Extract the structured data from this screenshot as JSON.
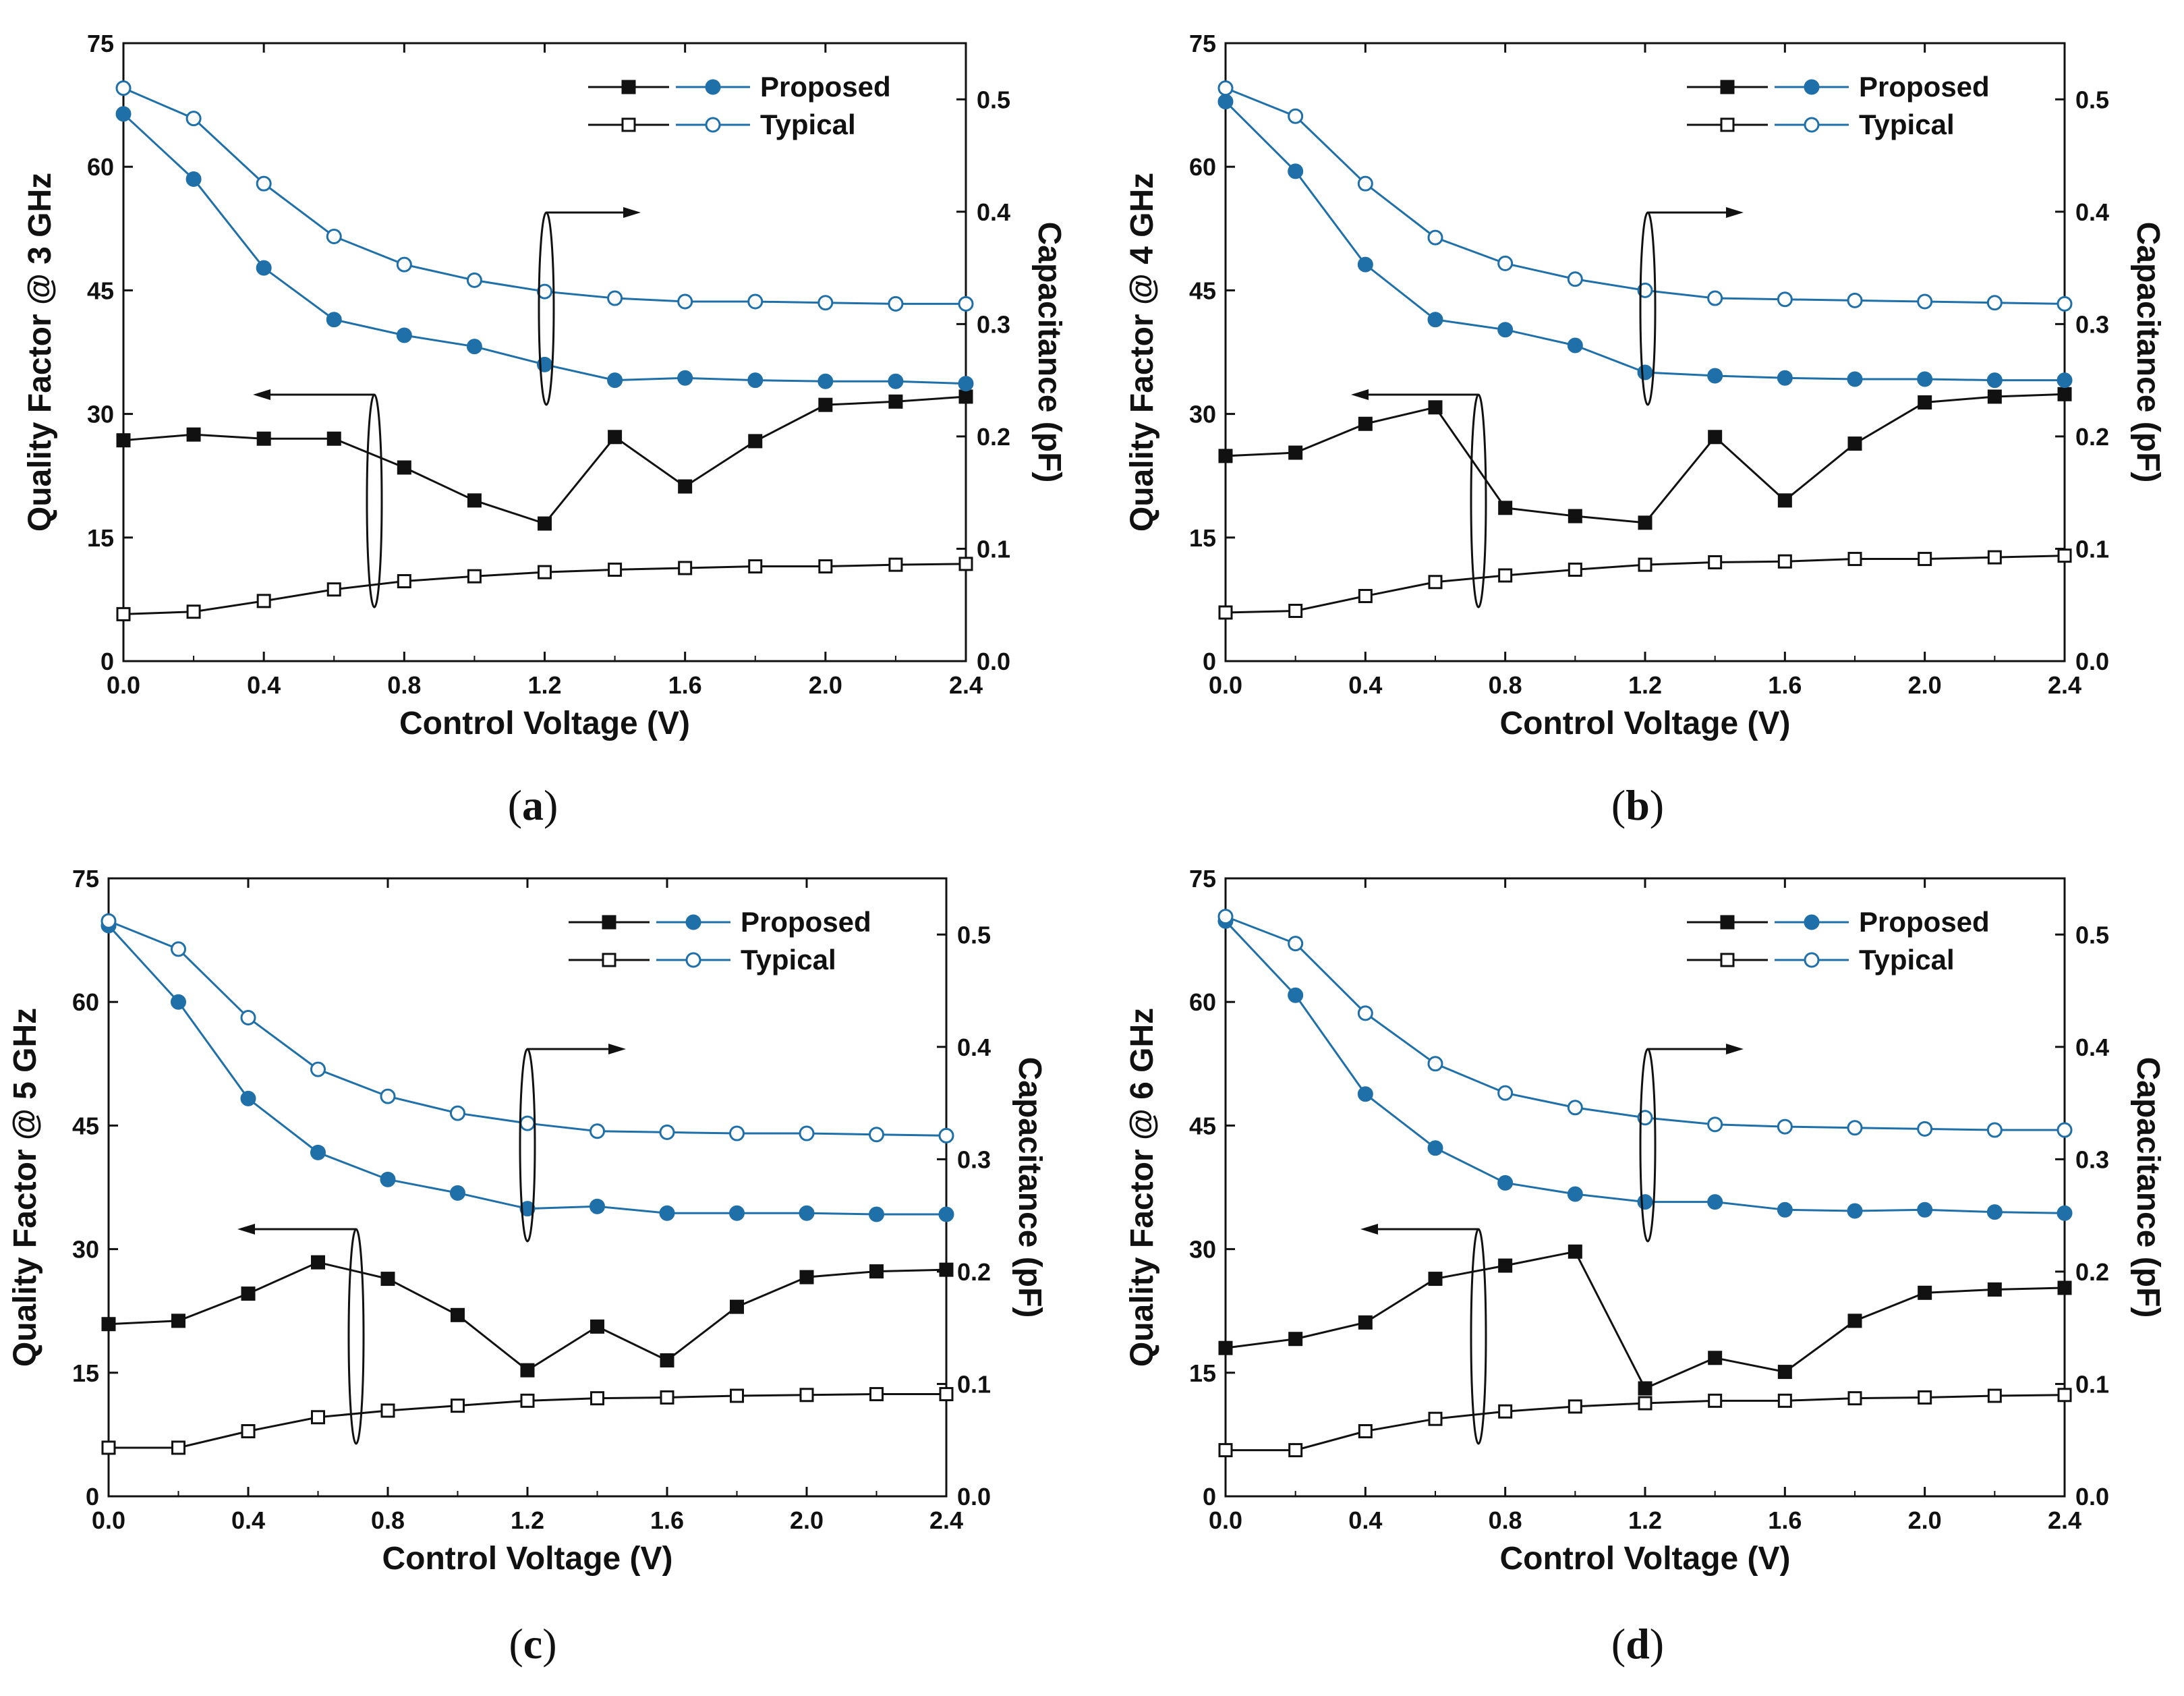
{
  "figure": {
    "x_label": "Control Voltage (V)",
    "y2_label": "Capacitance (pF)",
    "x_ticks": [
      "0.0",
      "0.4",
      "0.8",
      "1.2",
      "1.6",
      "2.0",
      "2.4"
    ],
    "y1_ticks": [
      "0",
      "15",
      "30",
      "45",
      "60",
      "75"
    ],
    "y2_ticks": [
      "0.0",
      "0.1",
      "0.2",
      "0.3",
      "0.4",
      "0.5"
    ],
    "legend": {
      "proposed": "Proposed",
      "typical": "Typical"
    },
    "colors": {
      "q_series": "#111111",
      "cap_series": "#1f6fa8"
    }
  },
  "chart_data": [
    {
      "type": "line",
      "panel": "a",
      "label_open": "(",
      "label_letter": "a",
      "label_close": ")",
      "ylabel": "Quality Factor @ 3 GHz",
      "xlabel": "Control Voltage (V)",
      "y2label": "Capacitance (pF)",
      "xlim": [
        0,
        2.4
      ],
      "ylim": [
        0,
        75
      ],
      "y2lim": [
        0,
        0.55
      ],
      "x": [
        0.0,
        0.2,
        0.4,
        0.6,
        0.8,
        1.0,
        1.2,
        1.4,
        1.6,
        1.8,
        2.0,
        2.2,
        2.4
      ],
      "series": [
        {
          "name": "Proposed",
          "axis": "left",
          "quantity": "Q",
          "values": [
            26.8,
            27.5,
            27.0,
            27.0,
            23.5,
            19.5,
            16.7,
            27.2,
            21.2,
            26.7,
            31.1,
            31.5,
            32.1
          ]
        },
        {
          "name": "Typical",
          "axis": "left",
          "quantity": "Q",
          "values": [
            5.7,
            6.0,
            7.3,
            8.7,
            9.7,
            10.3,
            10.8,
            11.1,
            11.3,
            11.5,
            11.5,
            11.7,
            11.8
          ]
        },
        {
          "name": "Proposed",
          "axis": "right",
          "quantity": "C",
          "values": [
            0.487,
            0.429,
            0.35,
            0.304,
            0.29,
            0.28,
            0.264,
            0.25,
            0.252,
            0.25,
            0.249,
            0.249,
            0.247
          ]
        },
        {
          "name": "Typical",
          "axis": "right",
          "quantity": "C",
          "values": [
            0.51,
            0.483,
            0.425,
            0.378,
            0.353,
            0.339,
            0.329,
            0.323,
            0.32,
            0.32,
            0.319,
            0.318,
            0.318
          ]
        }
      ],
      "annotations": [
        {
          "target": "capacitance curves",
          "axis": "right",
          "arrow": "right"
        },
        {
          "target": "quality factor curves",
          "axis": "left",
          "arrow": "left"
        }
      ]
    },
    {
      "type": "line",
      "panel": "b",
      "label_open": "(",
      "label_letter": "b",
      "label_close": ")",
      "ylabel": "Quality Factor @ 4 GHz",
      "xlabel": "Control Voltage (V)",
      "y2label": "Capacitance (pF)",
      "xlim": [
        0,
        2.4
      ],
      "ylim": [
        0,
        75
      ],
      "y2lim": [
        0,
        0.55
      ],
      "x": [
        0.0,
        0.2,
        0.4,
        0.6,
        0.8,
        1.0,
        1.2,
        1.4,
        1.6,
        1.8,
        2.0,
        2.2,
        2.4
      ],
      "series": [
        {
          "name": "Proposed",
          "axis": "left",
          "quantity": "Q",
          "values": [
            24.9,
            25.3,
            28.8,
            30.8,
            18.6,
            17.6,
            16.8,
            27.2,
            19.5,
            26.4,
            31.4,
            32.1,
            32.4
          ]
        },
        {
          "name": "Typical",
          "axis": "left",
          "quantity": "Q",
          "values": [
            5.9,
            6.1,
            7.9,
            9.6,
            10.4,
            11.1,
            11.7,
            12.0,
            12.1,
            12.4,
            12.4,
            12.6,
            12.8
          ]
        },
        {
          "name": "Proposed",
          "axis": "right",
          "quantity": "C",
          "values": [
            0.498,
            0.436,
            0.353,
            0.304,
            0.295,
            0.281,
            0.257,
            0.254,
            0.252,
            0.251,
            0.251,
            0.25,
            0.25
          ]
        },
        {
          "name": "Typical",
          "axis": "right",
          "quantity": "C",
          "values": [
            0.51,
            0.485,
            0.425,
            0.377,
            0.354,
            0.34,
            0.33,
            0.323,
            0.322,
            0.321,
            0.32,
            0.319,
            0.318
          ]
        }
      ],
      "annotations": [
        {
          "target": "capacitance curves",
          "axis": "right",
          "arrow": "right"
        },
        {
          "target": "quality factor curves",
          "axis": "left",
          "arrow": "left"
        }
      ]
    },
    {
      "type": "line",
      "panel": "c",
      "label_open": "(",
      "label_letter": "c",
      "label_close": ")",
      "ylabel": "Quality Factor @ 5 GHz",
      "xlabel": "Control Voltage (V)",
      "y2label": "Capacitance (pF)",
      "xlim": [
        0,
        2.4
      ],
      "ylim": [
        0,
        75
      ],
      "y2lim": [
        0,
        0.55
      ],
      "x": [
        0.0,
        0.2,
        0.4,
        0.6,
        0.8,
        1.0,
        1.2,
        1.4,
        1.6,
        1.8,
        2.0,
        2.2,
        2.4
      ],
      "series": [
        {
          "name": "Proposed",
          "axis": "left",
          "quantity": "Q",
          "values": [
            20.9,
            21.3,
            24.6,
            28.4,
            26.4,
            22.0,
            15.3,
            20.6,
            16.5,
            23.0,
            26.6,
            27.3,
            27.5
          ]
        },
        {
          "name": "Typical",
          "axis": "left",
          "quantity": "Q",
          "values": [
            5.9,
            5.9,
            7.9,
            9.6,
            10.4,
            11.0,
            11.6,
            11.9,
            12.0,
            12.2,
            12.3,
            12.4,
            12.4
          ]
        },
        {
          "name": "Proposed",
          "axis": "right",
          "quantity": "C",
          "values": [
            0.508,
            0.44,
            0.354,
            0.306,
            0.282,
            0.27,
            0.256,
            0.258,
            0.252,
            0.252,
            0.252,
            0.251,
            0.251
          ]
        },
        {
          "name": "Typical",
          "axis": "right",
          "quantity": "C",
          "values": [
            0.512,
            0.487,
            0.426,
            0.38,
            0.356,
            0.341,
            0.332,
            0.325,
            0.324,
            0.323,
            0.323,
            0.322,
            0.321
          ]
        }
      ],
      "annotations": [
        {
          "target": "capacitance curves",
          "axis": "right",
          "arrow": "right"
        },
        {
          "target": "quality factor curves",
          "axis": "left",
          "arrow": "left"
        }
      ]
    },
    {
      "type": "line",
      "panel": "d",
      "label_open": "(",
      "label_letter": "d",
      "label_close": ")",
      "ylabel": "Quality Factor @ 6 GHz",
      "xlabel": "Control Voltage (V)",
      "y2label": "Capacitance (pF)",
      "xlim": [
        0,
        2.4
      ],
      "ylim": [
        0,
        75
      ],
      "y2lim": [
        0,
        0.55
      ],
      "x": [
        0.0,
        0.2,
        0.4,
        0.6,
        0.8,
        1.0,
        1.2,
        1.4,
        1.6,
        1.8,
        2.0,
        2.2,
        2.4
      ],
      "series": [
        {
          "name": "Proposed",
          "axis": "left",
          "quantity": "Q",
          "values": [
            18.0,
            19.1,
            21.1,
            26.4,
            28.0,
            29.7,
            13.1,
            16.8,
            15.1,
            21.3,
            24.7,
            25.1,
            25.3
          ]
        },
        {
          "name": "Typical",
          "axis": "left",
          "quantity": "Q",
          "values": [
            5.6,
            5.6,
            7.9,
            9.4,
            10.3,
            10.9,
            11.3,
            11.6,
            11.6,
            11.9,
            12.0,
            12.2,
            12.3
          ]
        },
        {
          "name": "Proposed",
          "axis": "right",
          "quantity": "C",
          "values": [
            0.512,
            0.446,
            0.358,
            0.31,
            0.279,
            0.269,
            0.262,
            0.262,
            0.255,
            0.254,
            0.255,
            0.253,
            0.252
          ]
        },
        {
          "name": "Typical",
          "axis": "right",
          "quantity": "C",
          "values": [
            0.516,
            0.492,
            0.43,
            0.385,
            0.359,
            0.346,
            0.337,
            0.331,
            0.329,
            0.328,
            0.327,
            0.326,
            0.326
          ]
        }
      ],
      "annotations": [
        {
          "target": "capacitance curves",
          "axis": "right",
          "arrow": "right"
        },
        {
          "target": "quality factor curves",
          "axis": "left",
          "arrow": "left"
        }
      ]
    }
  ]
}
